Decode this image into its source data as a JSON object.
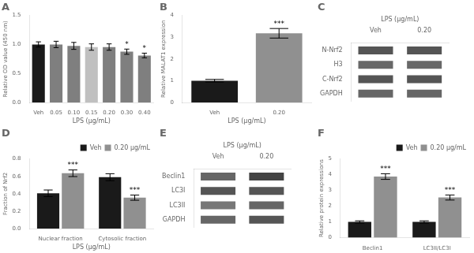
{
  "chart_data": [
    {
      "type": "bar",
      "title": "A",
      "categories": [
        "Veh",
        "0.05",
        "0.10",
        "0.15",
        "0.20",
        "0.30",
        "0.40"
      ],
      "values": [
        1.0,
        1.0,
        0.975,
        0.955,
        0.955,
        0.875,
        0.81
      ],
      "errors": [
        0.045,
        0.055,
        0.06,
        0.055,
        0.055,
        0.045,
        0.04
      ],
      "colors": [
        "#1a1a1a",
        "#7f7f7f",
        "#7f7f7f",
        "#c0c0c0",
        "#7f7f7f",
        "#7f7f7f",
        "#7f7f7f"
      ],
      "xlabel": "LPS (μg/mL)",
      "ylabel": "Relative OD value (450 nm)",
      "ylim": [
        0,
        1.5
      ],
      "yticks": [
        {
          "value": 0,
          "label": "0.0"
        },
        0.5,
        {
          "value": 1,
          "label": "1.0"
        },
        1.5
      ],
      "grid": false,
      "annotations": [
        {
          "category": "0.30",
          "text": "*"
        },
        {
          "category": "0.40",
          "text": "*"
        }
      ]
    },
    {
      "type": "bar",
      "title": "B",
      "categories": [
        "Veh",
        "0.20"
      ],
      "values": [
        1.0,
        3.18
      ],
      "errors": [
        0.06,
        0.22
      ],
      "colors": [
        "#1a1a1a",
        "#909090"
      ],
      "xlabel": "LPS (μg/mL)",
      "ylabel": "Relative MALAT1 expression",
      "ylim": [
        0,
        4
      ],
      "yticks": [
        0,
        1,
        2,
        3,
        4
      ],
      "grid": false,
      "annotations": [
        {
          "category": "0.20",
          "text": "***"
        }
      ]
    },
    {
      "type": "blot",
      "title": "C",
      "xlabel": "LPS (μg/mL)",
      "categories": [
        "Veh",
        "0.20"
      ],
      "rows": [
        "N-Nrf2",
        "H3",
        "C-Nrf2",
        "GAPDH"
      ],
      "colors": [
        [
          "#555555",
          "#686868",
          "#555555",
          "#666666"
        ],
        [
          "#555555",
          "#686868",
          "#555555",
          "#666666"
        ]
      ]
    },
    {
      "type": "bar",
      "title": "D",
      "categories": [
        "Nuclear fraction",
        "Cytosolic fraction"
      ],
      "series": [
        {
          "name": "Veh",
          "color": "#1a1a1a",
          "values": [
            0.405,
            0.59
          ],
          "errors": [
            0.038,
            0.04
          ]
        },
        {
          "name": "0.20 μg/mL",
          "color": "#909090",
          "values": [
            0.635,
            0.355
          ],
          "errors": [
            0.038,
            0.03
          ]
        }
      ],
      "xlabel": "LPS (μg/mL)",
      "ylabel": "Fraction of Nrf2",
      "ylim": [
        0,
        0.8
      ],
      "yticks": [
        {
          "value": 0,
          "label": "0.0"
        },
        0.2,
        0.4,
        0.6,
        0.8
      ],
      "grid": false,
      "legend": "upper right",
      "annotations": [
        {
          "series": "0.20 μg/mL",
          "category": "Nuclear fraction",
          "text": "***"
        },
        {
          "series": "0.20 μg/mL",
          "category": "Cytosolic fraction",
          "text": "***"
        }
      ]
    },
    {
      "type": "blot",
      "title": "E",
      "xlabel": "LPS (μg/mL)",
      "categories": [
        "Veh",
        "0.20"
      ],
      "rows": [
        "Beclin1",
        "LC3I",
        "LC3II",
        "GAPDH"
      ],
      "colors": [
        [
          "#666666",
          "#555555",
          "#777777",
          "#666666"
        ],
        [
          "#444444",
          "#555555",
          "#666666",
          "#555555"
        ]
      ]
    },
    {
      "type": "bar",
      "title": "F",
      "categories": [
        "Beclin1",
        "LC3II/LC3I"
      ],
      "series": [
        {
          "name": "Veh",
          "color": "#1a1a1a",
          "values": [
            1.0,
            1.0
          ],
          "errors": [
            0.07,
            0.07
          ]
        },
        {
          "name": "0.20 μg/mL",
          "color": "#909090",
          "values": [
            3.88,
            2.55
          ],
          "errors": [
            0.18,
            0.16
          ]
        }
      ],
      "ylabel": "Relative protein expressions",
      "ylim": [
        0,
        5
      ],
      "yticks": [
        0,
        1,
        2,
        3,
        4,
        5
      ],
      "grid": false,
      "legend": "upper right",
      "annotations": [
        {
          "series": "0.20 μg/mL",
          "category": "Beclin1",
          "text": "***"
        },
        {
          "series": "0.20 μg/mL",
          "category": "LC3II/LC3I",
          "text": "***"
        }
      ]
    }
  ]
}
